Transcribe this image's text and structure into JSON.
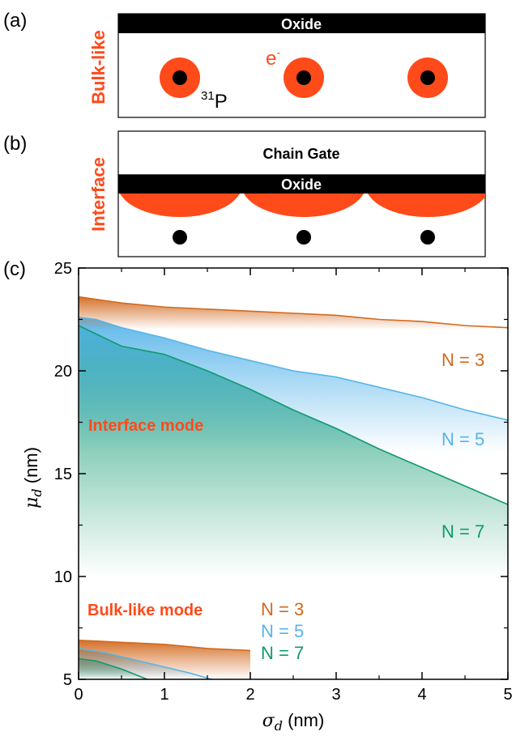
{
  "panels": {
    "a": {
      "letter": "(a)",
      "side_label": "Bulk-like",
      "oxide": "Oxide",
      "electron": "e",
      "electron_sup": "-",
      "isotope_sup": "31",
      "isotope": "P"
    },
    "b": {
      "letter": "(b)",
      "side_label": "Interface",
      "gate": "Chain Gate",
      "oxide": "Oxide"
    },
    "c": {
      "letter": "(c)"
    }
  },
  "colors": {
    "n3": "#D2691E",
    "n5": "#56B4E9",
    "n7": "#109A6E",
    "accent": "#FF4A1A",
    "oxide": "#000000"
  },
  "chart_data": {
    "type": "area",
    "xlabel_symbol": "σ",
    "xlabel_sub": "d",
    "xlabel_unit": " (nm)",
    "ylabel_symbol": "μ",
    "ylabel_sub": "d",
    "ylabel_unit": " (nm)",
    "xlim": [
      0,
      5
    ],
    "ylim": [
      5,
      25
    ],
    "xticks": [
      "0",
      "1",
      "2",
      "3",
      "4",
      "5"
    ],
    "yticks": [
      "5",
      "10",
      "15",
      "20",
      "25"
    ],
    "annotations": {
      "interface_mode": "Interface mode",
      "bulk_mode": "Bulk-like mode"
    },
    "interface_series": [
      {
        "name": "N = 3",
        "x": [
          0,
          0.5,
          1,
          1.5,
          2,
          2.5,
          3,
          3.5,
          4,
          4.5,
          5
        ],
        "y": [
          23.6,
          23.3,
          23.1,
          23.0,
          22.9,
          22.8,
          22.7,
          22.5,
          22.4,
          22.2,
          22.1
        ],
        "floor": 22.0
      },
      {
        "name": "N = 5",
        "x": [
          0,
          0.2,
          0.5,
          1,
          1.5,
          2,
          2.5,
          3,
          3.5,
          4,
          4.5,
          5
        ],
        "y": [
          22.6,
          22.5,
          22.1,
          21.6,
          21.0,
          20.5,
          20.0,
          19.7,
          19.2,
          18.7,
          18.1,
          17.6
        ],
        "floor": 16.0
      },
      {
        "name": "N = 7",
        "x": [
          0,
          0.2,
          0.5,
          1,
          1.5,
          2,
          2.5,
          3,
          3.5,
          4,
          4.5,
          5
        ],
        "y": [
          22.2,
          21.8,
          21.2,
          20.8,
          20.0,
          19.1,
          18.1,
          17.2,
          16.2,
          15.3,
          14.4,
          13.5
        ],
        "floor": 10.0
      }
    ],
    "bulk_series": [
      {
        "name": "N = 3",
        "x": [
          0,
          0.5,
          1,
          1.5,
          2
        ],
        "y": [
          6.9,
          6.8,
          6.7,
          6.5,
          6.4
        ]
      },
      {
        "name": "N = 5",
        "x": [
          0,
          0.3,
          0.6,
          1.0,
          1.3,
          1.55
        ],
        "y": [
          6.5,
          6.3,
          6.0,
          5.6,
          5.3,
          5.0
        ]
      },
      {
        "name": "N = 7",
        "x": [
          0,
          0.2,
          0.5,
          0.8
        ],
        "y": [
          6.0,
          5.9,
          5.5,
          5.0
        ]
      }
    ]
  }
}
